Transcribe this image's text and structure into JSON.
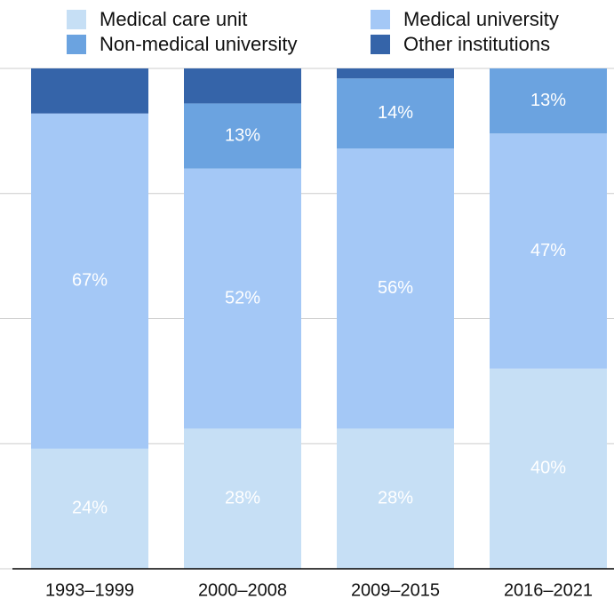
{
  "chart_data": {
    "type": "stacked_bar",
    "categories": [
      "1993–1999",
      "2000–2008",
      "2009–2015",
      "2016–2021"
    ],
    "series": [
      {
        "name": "Medical care unit",
        "color": "#c6dff5",
        "values": [
          24,
          28,
          28,
          40
        ],
        "value_labels": [
          "24%",
          "28%",
          "28%",
          "40%"
        ]
      },
      {
        "name": "Medical university",
        "color": "#a4c8f6",
        "values": [
          67,
          52,
          56,
          47
        ],
        "value_labels": [
          "67%",
          "52%",
          "56%",
          "47%"
        ]
      },
      {
        "name": "Non-medical university",
        "color": "#6ba3e0",
        "values": [
          0,
          13,
          14,
          13
        ],
        "value_labels": [
          null,
          "13%",
          "14%",
          "13%"
        ]
      },
      {
        "name": "Other institutions",
        "color": "#3564a9",
        "values": [
          9,
          7,
          2,
          0
        ]
      }
    ],
    "ylim": [
      0,
      100
    ],
    "yticks": [
      0,
      25,
      50,
      75,
      100
    ],
    "grid": true
  }
}
